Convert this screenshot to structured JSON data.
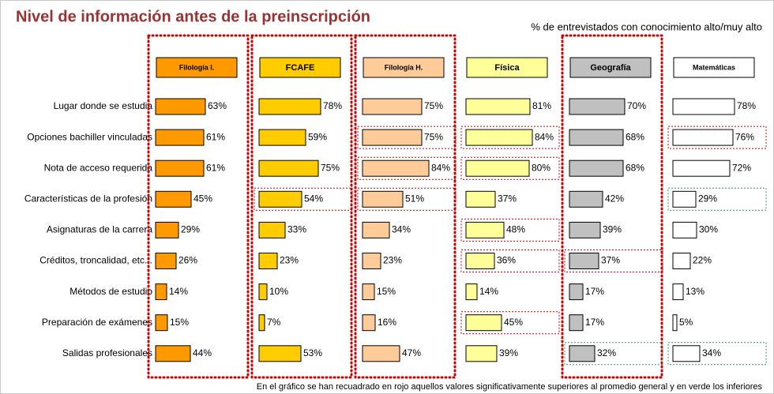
{
  "chart_data": {
    "type": "bar",
    "orientation": "horizontal",
    "title": "Nivel de información antes de la preinscripción",
    "subtitle": "% de entrevistados con conocimiento alto/muy alto",
    "footnote": "En el gráfico se han recuadrado en rojo aquellos valores significativamente superiores al promedio general y en verde los inferiores",
    "xlim": [
      0,
      100
    ],
    "categories": [
      "Lugar donde se estudia",
      "Opciones bachiller vinculadas",
      "Nota de acceso requerida",
      "Características de la profesión",
      "Asignaturas de la carrera",
      "Créditos, troncalidad, etc...",
      "Métodos de estudio",
      "Preparación de exámenes",
      "Salidas profesionales"
    ],
    "series": [
      {
        "name": "Filología I.",
        "color": "#ff9900",
        "boxed": true,
        "values": [
          63,
          61,
          61,
          45,
          29,
          26,
          14,
          15,
          44
        ],
        "value_labels": [
          "63%",
          "61%",
          "61%",
          "45%",
          "29%",
          "26%",
          "14%",
          "15%",
          "44%"
        ],
        "highlights": [
          null,
          null,
          null,
          null,
          null,
          null,
          null,
          null,
          null
        ]
      },
      {
        "name": "FCAFE",
        "color": "#ffcc00",
        "boxed": true,
        "values": [
          78,
          59,
          75,
          54,
          33,
          23,
          10,
          7,
          53
        ],
        "value_labels": [
          "78%",
          "59%",
          "75%",
          "54%",
          "33%",
          "23%",
          "10%",
          "7%",
          "53%"
        ],
        "highlights": [
          null,
          null,
          null,
          "red",
          null,
          null,
          null,
          null,
          null
        ]
      },
      {
        "name": "Filología H.",
        "color": "#ffcc99",
        "boxed": true,
        "values": [
          75,
          75,
          84,
          51,
          34,
          23,
          15,
          16,
          47
        ],
        "value_labels": [
          "75%",
          "75%",
          "84%",
          "51%",
          "34%",
          "23%",
          "15%",
          "16%",
          "47%"
        ],
        "highlights": [
          null,
          "red",
          "red",
          "red",
          null,
          null,
          null,
          null,
          null
        ]
      },
      {
        "name": "Física",
        "color": "#ffff99",
        "boxed": false,
        "values": [
          81,
          84,
          80,
          37,
          48,
          36,
          14,
          45,
          39
        ],
        "value_labels": [
          "81%",
          "84%",
          "80%",
          "37%",
          "48%",
          "36%",
          "14%",
          "45%",
          "39%"
        ],
        "highlights": [
          null,
          "red",
          "red",
          null,
          "red",
          "red",
          null,
          "red",
          null
        ]
      },
      {
        "name": "Geografía",
        "color": "#c0c0c0",
        "boxed": true,
        "values": [
          70,
          68,
          68,
          42,
          39,
          37,
          17,
          17,
          32
        ],
        "value_labels": [
          "70%",
          "68%",
          "68%",
          "42%",
          "39%",
          "37%",
          "17%",
          "17%",
          "32%"
        ],
        "highlights": [
          null,
          null,
          null,
          null,
          null,
          "red",
          null,
          null,
          "green"
        ]
      },
      {
        "name": "Matemáticas",
        "color": "#ffffff",
        "boxed": false,
        "values": [
          78,
          76,
          72,
          29,
          30,
          22,
          13,
          5,
          34
        ],
        "value_labels": [
          "78%",
          "76%",
          "72%",
          "29%",
          "30%",
          "22%",
          "13%",
          "5%",
          "34%"
        ],
        "highlights": [
          null,
          "red",
          null,
          "green",
          null,
          null,
          null,
          null,
          "green"
        ]
      }
    ]
  }
}
